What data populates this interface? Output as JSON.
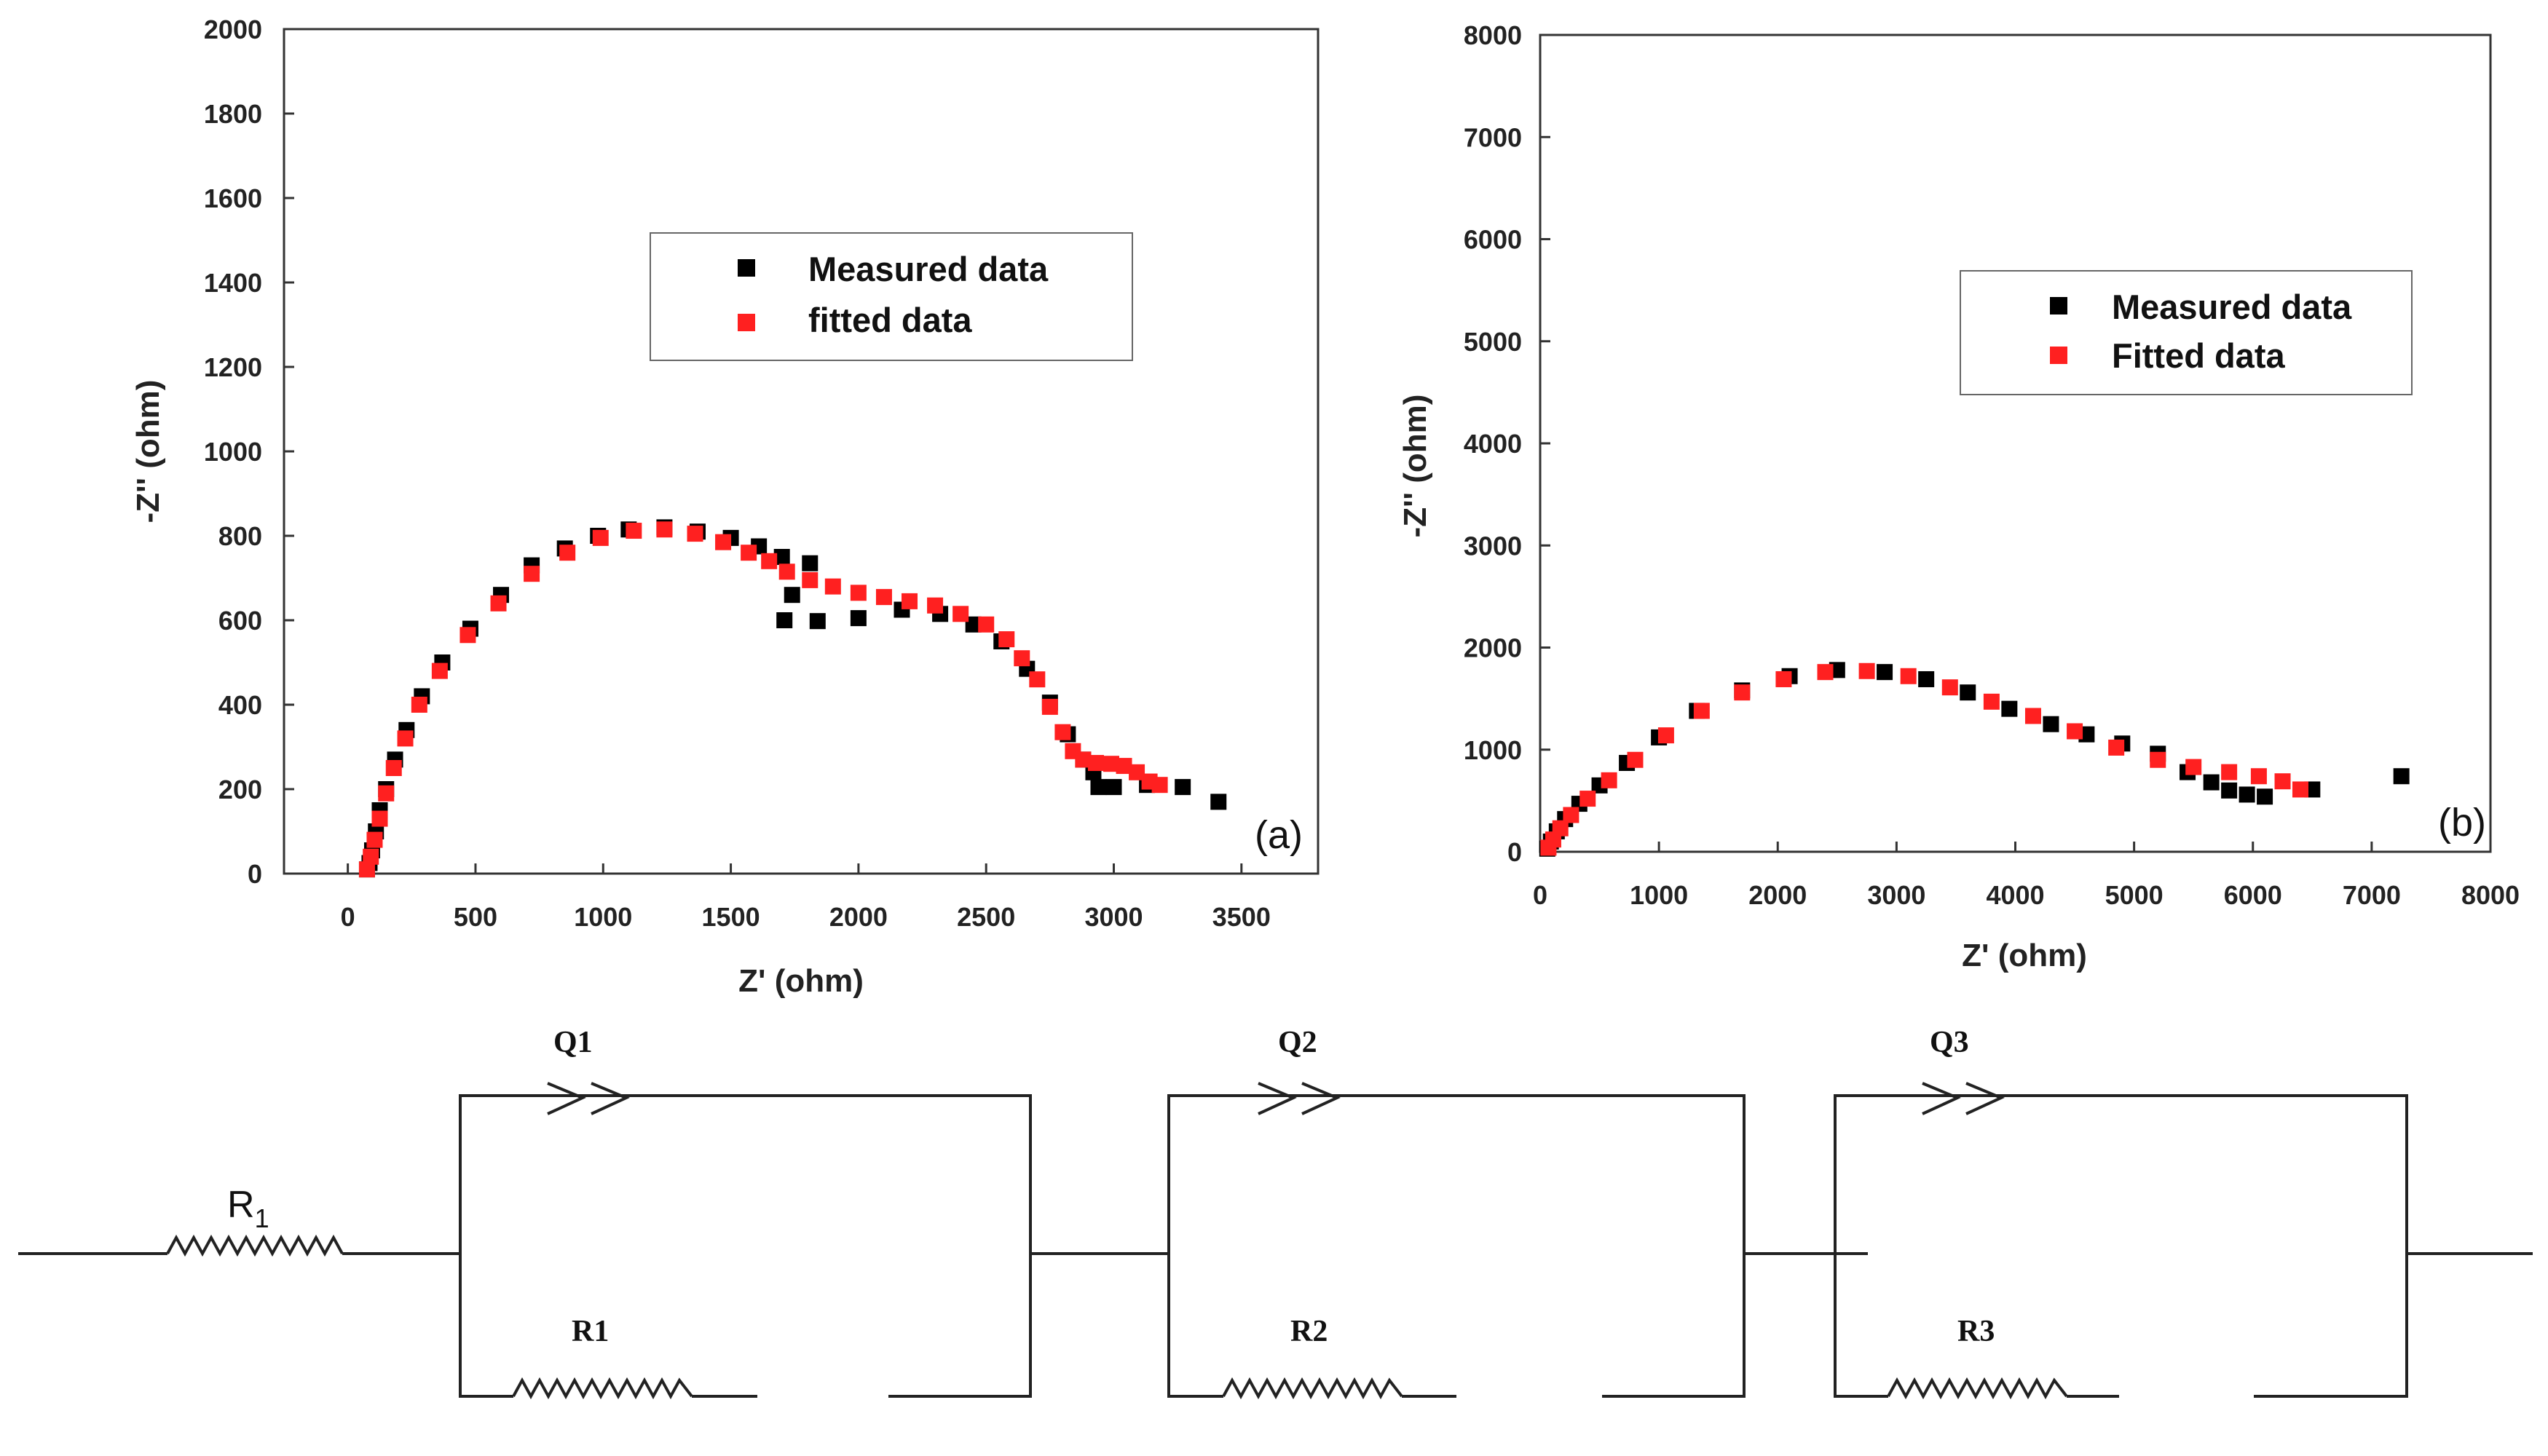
{
  "chart_data": [
    {
      "type": "scatter",
      "panel_label": "(a)",
      "xlabel": "Z' (ohm)",
      "ylabel": "-Z'' (ohm)",
      "xlim": [
        -250,
        3800
      ],
      "ylim": [
        0,
        2000
      ],
      "xticks": [
        "0",
        "500",
        "1000",
        "1500",
        "2000",
        "2500",
        "3000",
        "3500"
      ],
      "yticks": [
        "0",
        "200",
        "400",
        "600",
        "800",
        "1000",
        "1200",
        "1400",
        "1600",
        "1800",
        "2000"
      ],
      "legend": {
        "position": "upper-center",
        "entries": [
          "Measured data",
          "fitted data"
        ]
      },
      "series": [
        {
          "name": "Measured data",
          "color": "#000000",
          "points": [
            [
              75,
              10
            ],
            [
              85,
              25
            ],
            [
              95,
              55
            ],
            [
              110,
              100
            ],
            [
              125,
              150
            ],
            [
              150,
              200
            ],
            [
              185,
              270
            ],
            [
              230,
              340
            ],
            [
              290,
              420
            ],
            [
              370,
              500
            ],
            [
              480,
              580
            ],
            [
              600,
              660
            ],
            [
              720,
              730
            ],
            [
              850,
              770
            ],
            [
              980,
              800
            ],
            [
              1100,
              815
            ],
            [
              1240,
              820
            ],
            [
              1370,
              810
            ],
            [
              1500,
              795
            ],
            [
              1610,
              775
            ],
            [
              1700,
              750
            ],
            [
              1810,
              735
            ],
            [
              1740,
              660
            ],
            [
              1710,
              600
            ],
            [
              1840,
              598
            ],
            [
              2000,
              605
            ],
            [
              2170,
              625
            ],
            [
              2320,
              615
            ],
            [
              2450,
              590
            ],
            [
              2560,
              550
            ],
            [
              2660,
              485
            ],
            [
              2750,
              405
            ],
            [
              2820,
              330
            ],
            [
              2880,
              270
            ],
            [
              2920,
              240
            ],
            [
              2940,
              205
            ],
            [
              3000,
              205
            ],
            [
              3130,
              210
            ],
            [
              3270,
              205
            ],
            [
              3410,
              170
            ]
          ]
        },
        {
          "name": "fitted data",
          "color": "#ff2020",
          "points": [
            [
              75,
              10
            ],
            [
              90,
              40
            ],
            [
              105,
              80
            ],
            [
              125,
              130
            ],
            [
              150,
              190
            ],
            [
              180,
              250
            ],
            [
              225,
              320
            ],
            [
              280,
              400
            ],
            [
              360,
              480
            ],
            [
              470,
              565
            ],
            [
              590,
              640
            ],
            [
              720,
              710
            ],
            [
              860,
              760
            ],
            [
              990,
              795
            ],
            [
              1120,
              812
            ],
            [
              1240,
              815
            ],
            [
              1360,
              805
            ],
            [
              1470,
              785
            ],
            [
              1570,
              760
            ],
            [
              1650,
              740
            ],
            [
              1720,
              715
            ],
            [
              1810,
              695
            ],
            [
              1900,
              680
            ],
            [
              2000,
              665
            ],
            [
              2100,
              655
            ],
            [
              2200,
              645
            ],
            [
              2300,
              635
            ],
            [
              2400,
              615
            ],
            [
              2500,
              590
            ],
            [
              2580,
              555
            ],
            [
              2640,
              510
            ],
            [
              2700,
              460
            ],
            [
              2750,
              395
            ],
            [
              2800,
              335
            ],
            [
              2840,
              290
            ],
            [
              2880,
              270
            ],
            [
              2930,
              262
            ],
            [
              2990,
              260
            ],
            [
              3040,
              255
            ],
            [
              3090,
              240
            ],
            [
              3140,
              218
            ],
            [
              3180,
              210
            ]
          ]
        }
      ]
    },
    {
      "type": "scatter",
      "panel_label": "(b)",
      "xlabel": "Z' (ohm)",
      "ylabel": "-Z'' (ohm)",
      "xlim": [
        0,
        8000
      ],
      "ylim": [
        0,
        8000
      ],
      "xticks": [
        "0",
        "1000",
        "2000",
        "3000",
        "4000",
        "5000",
        "6000",
        "7000",
        "8000"
      ],
      "yticks": [
        "0",
        "1000",
        "2000",
        "3000",
        "4000",
        "5000",
        "6000",
        "7000",
        "8000"
      ],
      "legend": {
        "position": "upper-right",
        "entries": [
          "Measured data",
          "Fitted data"
        ]
      },
      "series": [
        {
          "name": "Measured data",
          "color": "#000000",
          "points": [
            [
              60,
              30
            ],
            [
              90,
              100
            ],
            [
              140,
              200
            ],
            [
              210,
              320
            ],
            [
              330,
              470
            ],
            [
              500,
              650
            ],
            [
              730,
              870
            ],
            [
              1000,
              1120
            ],
            [
              1320,
              1380
            ],
            [
              1700,
              1580
            ],
            [
              2100,
              1720
            ],
            [
              2500,
              1780
            ],
            [
              2900,
              1760
            ],
            [
              3250,
              1690
            ],
            [
              3600,
              1560
            ],
            [
              3950,
              1400
            ],
            [
              4300,
              1250
            ],
            [
              4600,
              1150
            ],
            [
              4900,
              1060
            ],
            [
              5200,
              960
            ],
            [
              5450,
              780
            ],
            [
              5650,
              680
            ],
            [
              5800,
              600
            ],
            [
              5950,
              560
            ],
            [
              6100,
              540
            ],
            [
              6500,
              610
            ],
            [
              7250,
              740
            ]
          ]
        },
        {
          "name": "Fitted data",
          "color": "#ff2020",
          "points": [
            [
              70,
              40
            ],
            [
              110,
              120
            ],
            [
              170,
              230
            ],
            [
              260,
              360
            ],
            [
              400,
              520
            ],
            [
              580,
              700
            ],
            [
              800,
              900
            ],
            [
              1060,
              1140
            ],
            [
              1360,
              1380
            ],
            [
              1700,
              1560
            ],
            [
              2050,
              1690
            ],
            [
              2400,
              1760
            ],
            [
              2750,
              1770
            ],
            [
              3100,
              1720
            ],
            [
              3450,
              1610
            ],
            [
              3800,
              1470
            ],
            [
              4150,
              1330
            ],
            [
              4500,
              1180
            ],
            [
              4850,
              1020
            ],
            [
              5200,
              900
            ],
            [
              5500,
              830
            ],
            [
              5800,
              780
            ],
            [
              6050,
              740
            ],
            [
              6250,
              690
            ],
            [
              6400,
              610
            ]
          ]
        }
      ]
    }
  ],
  "circuit": {
    "series_resistor": {
      "label_main": "R",
      "label_sub": "1"
    },
    "blocks": [
      {
        "cpe_label": "Q1",
        "resistor_label": "R1"
      },
      {
        "cpe_label": "Q2",
        "resistor_label": "R2"
      },
      {
        "cpe_label": "Q3",
        "resistor_label": "R3"
      }
    ]
  }
}
